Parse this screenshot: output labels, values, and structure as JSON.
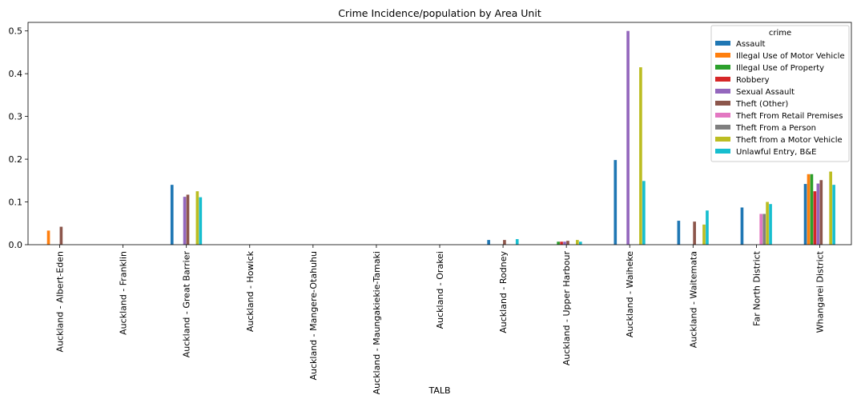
{
  "chart_data": {
    "type": "bar",
    "title": "Crime Incidence/population by Area Unit",
    "xlabel": "TALB",
    "ylabel": "",
    "ylim": [
      0,
      0.52
    ],
    "yticks": [
      "0.0",
      "0.1",
      "0.2",
      "0.3",
      "0.4",
      "0.5"
    ],
    "legend_title": "crime",
    "legend_position": "top-right",
    "categories": [
      "Auckland - Albert-Eden",
      "Auckland - Franklin",
      "Auckland - Great Barrier",
      "Auckland - Howick",
      "Auckland - Mangere-Otahuhu",
      "Auckland - Maungakiekie-Tamaki",
      "Auckland - Orakei",
      "Auckland - Rodney",
      "Auckland - Upper Harbour",
      "Auckland - Waiheke",
      "Auckland - Waitemata",
      "Far North District",
      "Whangarei District"
    ],
    "series": [
      {
        "name": "Assault",
        "color": "#1f77b4",
        "values": [
          0,
          0,
          0.14,
          0,
          0,
          0,
          0,
          0.011,
          0,
          0.198,
          0.056,
          0.087,
          0.142
        ]
      },
      {
        "name": "Illegal Use of Motor Vehicle",
        "color": "#ff7f0e",
        "values": [
          0.033,
          0,
          0,
          0,
          0,
          0,
          0,
          0,
          0,
          0,
          0,
          0,
          0.165
        ]
      },
      {
        "name": "Illegal Use of Property",
        "color": "#2ca02c",
        "values": [
          0,
          0,
          0,
          0,
          0,
          0,
          0,
          0,
          0.007,
          0,
          0,
          0,
          0.165
        ]
      },
      {
        "name": "Robbery",
        "color": "#d62728",
        "values": [
          0,
          0,
          0,
          0,
          0,
          0,
          0,
          0,
          0.007,
          0,
          0,
          0,
          0.125
        ]
      },
      {
        "name": "Sexual Assault",
        "color": "#9467bd",
        "values": [
          0,
          0,
          0.112,
          0,
          0,
          0,
          0,
          0,
          0.007,
          0.5,
          0,
          0,
          0.143
        ]
      },
      {
        "name": "Theft (Other)",
        "color": "#8c564b",
        "values": [
          0.042,
          0,
          0.117,
          0,
          0,
          0,
          0,
          0.011,
          0.009,
          0,
          0.054,
          0,
          0.151
        ]
      },
      {
        "name": "Theft From Retail Premises",
        "color": "#e377c2",
        "values": [
          0,
          0,
          0,
          0,
          0,
          0,
          0,
          0,
          0,
          0,
          0,
          0.072,
          0
        ]
      },
      {
        "name": "Theft From a Person",
        "color": "#7f7f7f",
        "values": [
          0,
          0,
          0,
          0,
          0,
          0,
          0,
          0,
          0,
          0,
          0,
          0.072,
          0
        ]
      },
      {
        "name": "Theft from a Motor Vehicle",
        "color": "#bcbd22",
        "values": [
          0,
          0,
          0.125,
          0,
          0,
          0,
          0,
          0,
          0.011,
          0.415,
          0.047,
          0.1,
          0.171
        ]
      },
      {
        "name": "Unlawful Entry, B&E",
        "color": "#17becf",
        "values": [
          0,
          0,
          0.111,
          0,
          0,
          0,
          0,
          0.013,
          0.007,
          0.149,
          0.08,
          0.095,
          0.14
        ]
      }
    ]
  }
}
